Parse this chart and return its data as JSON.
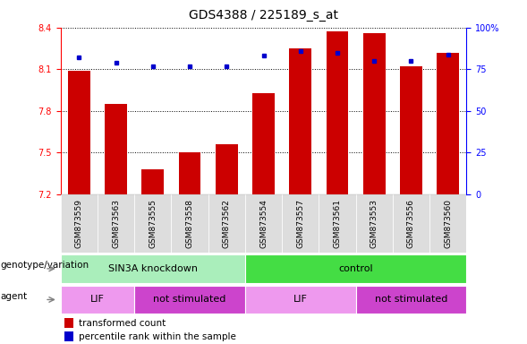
{
  "title": "GDS4388 / 225189_s_at",
  "samples": [
    "GSM873559",
    "GSM873563",
    "GSM873555",
    "GSM873558",
    "GSM873562",
    "GSM873554",
    "GSM873557",
    "GSM873561",
    "GSM873553",
    "GSM873556",
    "GSM873560"
  ],
  "bar_values": [
    8.09,
    7.85,
    7.38,
    7.5,
    7.56,
    7.93,
    8.25,
    8.37,
    8.36,
    8.12,
    8.22
  ],
  "percentile_values": [
    82,
    79,
    77,
    77,
    77,
    83,
    86,
    85,
    80,
    80,
    84
  ],
  "ylim_left": [
    7.2,
    8.4
  ],
  "ylim_right": [
    0,
    100
  ],
  "yticks_left": [
    7.2,
    7.5,
    7.8,
    8.1,
    8.4
  ],
  "yticks_right": [
    0,
    25,
    50,
    75,
    100
  ],
  "ytick_labels_right": [
    "0",
    "25",
    "50",
    "75",
    "100%"
  ],
  "bar_color": "#cc0000",
  "dot_color": "#0000cc",
  "bar_width": 0.6,
  "genotype_groups": [
    {
      "label": "SIN3A knockdown",
      "start": 0,
      "end": 5,
      "color": "#aaeebb"
    },
    {
      "label": "control",
      "start": 5,
      "end": 11,
      "color": "#44dd44"
    }
  ],
  "agent_groups": [
    {
      "label": "LIF",
      "start": 0,
      "end": 2,
      "color": "#ee99ee"
    },
    {
      "label": "not stimulated",
      "start": 2,
      "end": 5,
      "color": "#cc44cc"
    },
    {
      "label": "LIF",
      "start": 5,
      "end": 8,
      "color": "#ee99ee"
    },
    {
      "label": "not stimulated",
      "start": 8,
      "end": 11,
      "color": "#cc44cc"
    }
  ],
  "legend_bar_label": "transformed count",
  "legend_dot_label": "percentile rank within the sample",
  "genotype_label": "genotype/variation",
  "agent_label": "agent",
  "xtick_bg": "#dddddd",
  "title_fontsize": 10,
  "tick_fontsize": 7,
  "label_fontsize": 8,
  "sample_fontsize": 6.5
}
